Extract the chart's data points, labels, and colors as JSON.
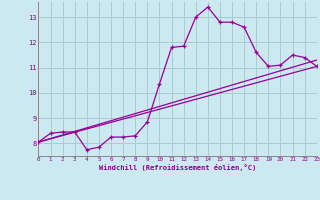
{
  "xlabel": "Windchill (Refroidissement éolien,°C)",
  "background_color": "#cce8f0",
  "grid_color": "#aacccc",
  "line_color": "#990099",
  "xlim": [
    0,
    23
  ],
  "ylim": [
    7.5,
    13.6
  ],
  "xticks": [
    0,
    1,
    2,
    3,
    4,
    5,
    6,
    7,
    8,
    9,
    10,
    11,
    12,
    13,
    14,
    15,
    16,
    17,
    18,
    19,
    20,
    21,
    22,
    23
  ],
  "yticks": [
    8,
    9,
    10,
    11,
    12,
    13
  ],
  "curve1_x": [
    0,
    1,
    2,
    3,
    4,
    5,
    6,
    7,
    8,
    9,
    10,
    11,
    12,
    13,
    14,
    15,
    16,
    17,
    18,
    19,
    20,
    21,
    22,
    23
  ],
  "curve1_y": [
    8.05,
    8.4,
    8.45,
    8.45,
    7.75,
    7.85,
    8.25,
    8.25,
    8.3,
    8.85,
    10.35,
    11.8,
    11.85,
    13.0,
    13.4,
    12.8,
    12.8,
    12.6,
    11.6,
    11.05,
    11.1,
    11.5,
    11.4,
    11.05
  ],
  "curve2_x": [
    0,
    23
  ],
  "curve2_y": [
    8.05,
    11.3
  ],
  "curve3_x": [
    0,
    23
  ],
  "curve3_y": [
    8.05,
    11.05
  ]
}
